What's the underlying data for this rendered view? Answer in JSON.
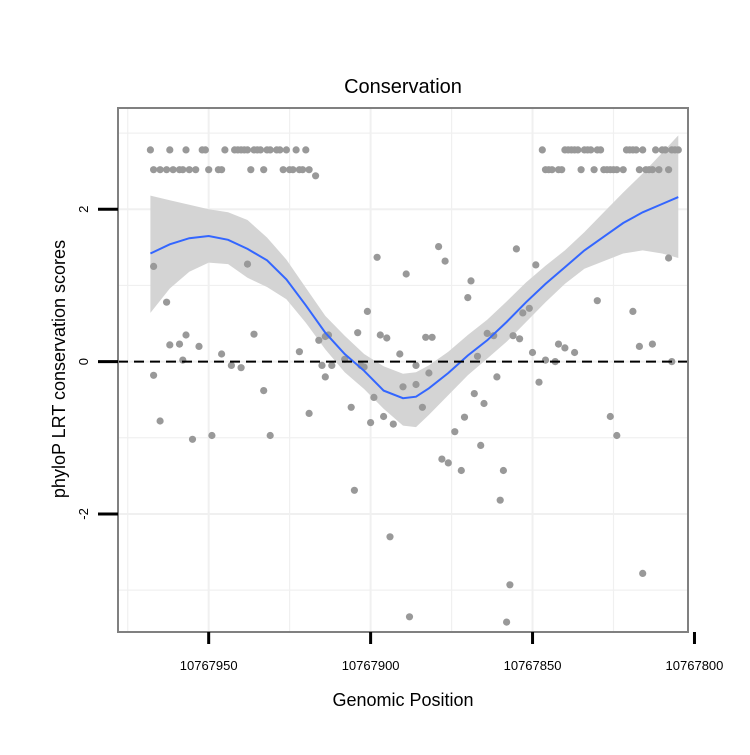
{
  "chart_data": {
    "type": "scatter",
    "title": "Conservation",
    "xlabel": "Genomic Position",
    "ylabel": "phyloP LRT conservation scores",
    "x_reversed": true,
    "xlim": [
      10767978,
      10767802
    ],
    "ylim": [
      -3.55,
      3.33
    ],
    "x_ticks": [
      {
        "value": 10767950,
        "label": "10767950"
      },
      {
        "value": 10767900,
        "label": "10767900"
      },
      {
        "value": 10767850,
        "label": "10767850"
      },
      {
        "value": 10767800,
        "label": "10767800"
      }
    ],
    "y_ticks": [
      {
        "value": 2,
        "label": "2"
      },
      {
        "value": 0,
        "label": "0"
      },
      {
        "value": -2,
        "label": "-2"
      }
    ],
    "grid": true,
    "reference_line": {
      "y": 0,
      "style": "dashed"
    },
    "colors": {
      "points": "#999999",
      "smooth_line": "#3366ff",
      "ribbon": "#d4d4d4",
      "grid": "#f0f0f0",
      "panel_border": "#808080"
    },
    "series": [
      {
        "kind": "points",
        "points": [
          [
            10767968,
            2.78
          ],
          [
            10767967,
            2.52
          ],
          [
            10767965,
            2.52
          ],
          [
            10767963,
            2.52
          ],
          [
            10767962,
            2.78
          ],
          [
            10767961,
            2.52
          ],
          [
            10767959,
            2.52
          ],
          [
            10767958,
            2.52
          ],
          [
            10767957,
            2.78
          ],
          [
            10767956,
            2.52
          ],
          [
            10767954,
            2.52
          ],
          [
            10767952,
            2.78
          ],
          [
            10767951,
            2.78
          ],
          [
            10767950,
            2.52
          ],
          [
            10767947,
            2.52
          ],
          [
            10767946,
            2.52
          ],
          [
            10767945,
            2.78
          ],
          [
            10767942,
            2.78
          ],
          [
            10767941,
            2.78
          ],
          [
            10767940,
            2.78
          ],
          [
            10767939,
            2.78
          ],
          [
            10767938,
            2.78
          ],
          [
            10767937,
            2.52
          ],
          [
            10767936,
            2.78
          ],
          [
            10767935,
            2.78
          ],
          [
            10767934,
            2.78
          ],
          [
            10767933,
            2.52
          ],
          [
            10767932,
            2.78
          ],
          [
            10767931,
            2.78
          ],
          [
            10767929,
            2.78
          ],
          [
            10767928,
            2.78
          ],
          [
            10767927,
            2.52
          ],
          [
            10767926,
            2.78
          ],
          [
            10767925,
            2.52
          ],
          [
            10767924,
            2.52
          ],
          [
            10767923,
            2.78
          ],
          [
            10767922,
            2.52
          ],
          [
            10767921,
            2.52
          ],
          [
            10767920,
            2.78
          ],
          [
            10767919,
            2.52
          ],
          [
            10767917,
            2.44
          ],
          [
            10767967,
            1.25
          ],
          [
            10767967,
            -0.18
          ],
          [
            10767965,
            -0.78
          ],
          [
            10767963,
            0.78
          ],
          [
            10767962,
            0.22
          ],
          [
            10767959,
            0.23
          ],
          [
            10767958,
            0.02
          ],
          [
            10767957,
            0.35
          ],
          [
            10767955,
            -1.02
          ],
          [
            10767953,
            0.2
          ],
          [
            10767949,
            -0.97
          ],
          [
            10767946,
            0.1
          ],
          [
            10767943,
            -0.05
          ],
          [
            10767940,
            -0.08
          ],
          [
            10767938,
            1.28
          ],
          [
            10767936,
            0.36
          ],
          [
            10767933,
            -0.38
          ],
          [
            10767931,
            -0.97
          ],
          [
            10767922,
            0.13
          ],
          [
            10767919,
            -0.68
          ],
          [
            10767916,
            0.28
          ],
          [
            10767914,
            0.33
          ],
          [
            10767913,
            0.35
          ],
          [
            10767915,
            -0.05
          ],
          [
            10767914,
            -0.2
          ],
          [
            10767912,
            -0.05
          ],
          [
            10767908,
            0.03
          ],
          [
            10767906,
            -0.6
          ],
          [
            10767905,
            -1.69
          ],
          [
            10767904,
            0.38
          ],
          [
            10767903,
            -0.05
          ],
          [
            10767902,
            -0.07
          ],
          [
            10767901,
            0.66
          ],
          [
            10767900,
            -0.8
          ],
          [
            10767899,
            -0.47
          ],
          [
            10767898,
            1.37
          ],
          [
            10767897,
            0.35
          ],
          [
            10767896,
            -0.72
          ],
          [
            10767895,
            0.31
          ],
          [
            10767894,
            -2.3
          ],
          [
            10767893,
            -0.82
          ],
          [
            10767891,
            0.1
          ],
          [
            10767890,
            -0.33
          ],
          [
            10767889,
            1.15
          ],
          [
            10767888,
            -3.35
          ],
          [
            10767886,
            -0.3
          ],
          [
            10767886,
            -0.05
          ],
          [
            10767884,
            -0.6
          ],
          [
            10767883,
            0.32
          ],
          [
            10767882,
            -0.15
          ],
          [
            10767881,
            0.32
          ],
          [
            10767879,
            1.51
          ],
          [
            10767878,
            -1.28
          ],
          [
            10767877,
            1.32
          ],
          [
            10767876,
            -1.33
          ],
          [
            10767874,
            -0.92
          ],
          [
            10767872,
            -1.43
          ],
          [
            10767871,
            -0.73
          ],
          [
            10767870,
            0.84
          ],
          [
            10767869,
            1.06
          ],
          [
            10767868,
            -0.42
          ],
          [
            10767867,
            0.07
          ],
          [
            10767866,
            -1.1
          ],
          [
            10767865,
            -0.55
          ],
          [
            10767864,
            0.37
          ],
          [
            10767862,
            0.34
          ],
          [
            10767861,
            -0.2
          ],
          [
            10767860,
            -1.82
          ],
          [
            10767859,
            -1.43
          ],
          [
            10767858,
            -3.42
          ],
          [
            10767857,
            -2.93
          ],
          [
            10767856,
            0.34
          ],
          [
            10767855,
            1.48
          ],
          [
            10767854,
            0.3
          ],
          [
            10767853,
            0.64
          ],
          [
            10767851,
            0.7
          ],
          [
            10767850,
            0.12
          ],
          [
            10767849,
            1.27
          ],
          [
            10767848,
            -0.27
          ],
          [
            10767847,
            2.78
          ],
          [
            10767846,
            2.52
          ],
          [
            10767845,
            2.52
          ],
          [
            10767844,
            2.52
          ],
          [
            10767842,
            2.52
          ],
          [
            10767841,
            2.52
          ],
          [
            10767840,
            2.78
          ],
          [
            10767839,
            2.78
          ],
          [
            10767838,
            2.78
          ],
          [
            10767837,
            2.78
          ],
          [
            10767836,
            2.78
          ],
          [
            10767835,
            2.52
          ],
          [
            10767834,
            2.78
          ],
          [
            10767833,
            2.78
          ],
          [
            10767832,
            2.78
          ],
          [
            10767831,
            2.52
          ],
          [
            10767830,
            2.78
          ],
          [
            10767829,
            2.78
          ],
          [
            10767828,
            2.52
          ],
          [
            10767827,
            2.52
          ],
          [
            10767826,
            2.52
          ],
          [
            10767825,
            2.52
          ],
          [
            10767824,
            2.52
          ],
          [
            10767822,
            2.52
          ],
          [
            10767821,
            2.78
          ],
          [
            10767820,
            2.78
          ],
          [
            10767819,
            2.78
          ],
          [
            10767818,
            2.78
          ],
          [
            10767817,
            2.52
          ],
          [
            10767816,
            2.78
          ],
          [
            10767815,
            2.52
          ],
          [
            10767814,
            2.52
          ],
          [
            10767813,
            2.52
          ],
          [
            10767812,
            2.78
          ],
          [
            10767811,
            2.52
          ],
          [
            10767810,
            2.78
          ],
          [
            10767809,
            2.78
          ],
          [
            10767808,
            2.52
          ],
          [
            10767807,
            2.78
          ],
          [
            10767806,
            2.78
          ],
          [
            10767805,
            2.78
          ],
          [
            10767846,
            0.02
          ],
          [
            10767843,
            0.0
          ],
          [
            10767842,
            0.23
          ],
          [
            10767840,
            0.18
          ],
          [
            10767837,
            0.12
          ],
          [
            10767830,
            0.8
          ],
          [
            10767826,
            -0.72
          ],
          [
            10767824,
            -0.97
          ],
          [
            10767819,
            0.66
          ],
          [
            10767817,
            0.2
          ],
          [
            10767816,
            -2.78
          ],
          [
            10767813,
            0.23
          ],
          [
            10767808,
            1.36
          ],
          [
            10767807,
            0.0
          ]
        ]
      },
      {
        "kind": "smooth",
        "x": [
          10767968,
          10767962,
          10767956,
          10767950,
          10767944,
          10767938,
          10767932,
          10767926,
          10767920,
          10767914,
          10767908,
          10767902,
          10767896,
          10767890,
          10767886,
          10767882,
          10767876,
          10767870,
          10767864,
          10767858,
          10767852,
          10767846,
          10767840,
          10767834,
          10767828,
          10767822,
          10767816,
          10767810,
          10767805
        ],
        "y": [
          1.42,
          1.54,
          1.62,
          1.65,
          1.6,
          1.48,
          1.33,
          1.08,
          0.74,
          0.38,
          0.1,
          -0.12,
          -0.38,
          -0.48,
          -0.46,
          -0.35,
          -0.15,
          0.08,
          0.28,
          0.52,
          0.78,
          1.02,
          1.24,
          1.46,
          1.64,
          1.82,
          1.96,
          2.07,
          2.16
        ],
        "upper": [
          2.18,
          2.12,
          2.06,
          2.0,
          1.96,
          1.86,
          1.63,
          1.34,
          0.97,
          0.6,
          0.34,
          0.1,
          -0.06,
          -0.16,
          -0.14,
          -0.05,
          0.13,
          0.35,
          0.55,
          0.79,
          1.04,
          1.26,
          1.46,
          1.7,
          1.96,
          2.22,
          2.47,
          2.74,
          2.97
        ],
        "lower": [
          0.64,
          0.96,
          1.18,
          1.3,
          1.28,
          1.1,
          0.98,
          0.82,
          0.51,
          0.16,
          -0.14,
          -0.36,
          -0.62,
          -0.84,
          -0.86,
          -0.7,
          -0.44,
          -0.18,
          0.04,
          0.26,
          0.52,
          0.78,
          1.02,
          1.22,
          1.32,
          1.42,
          1.46,
          1.42,
          1.36
        ]
      }
    ]
  }
}
